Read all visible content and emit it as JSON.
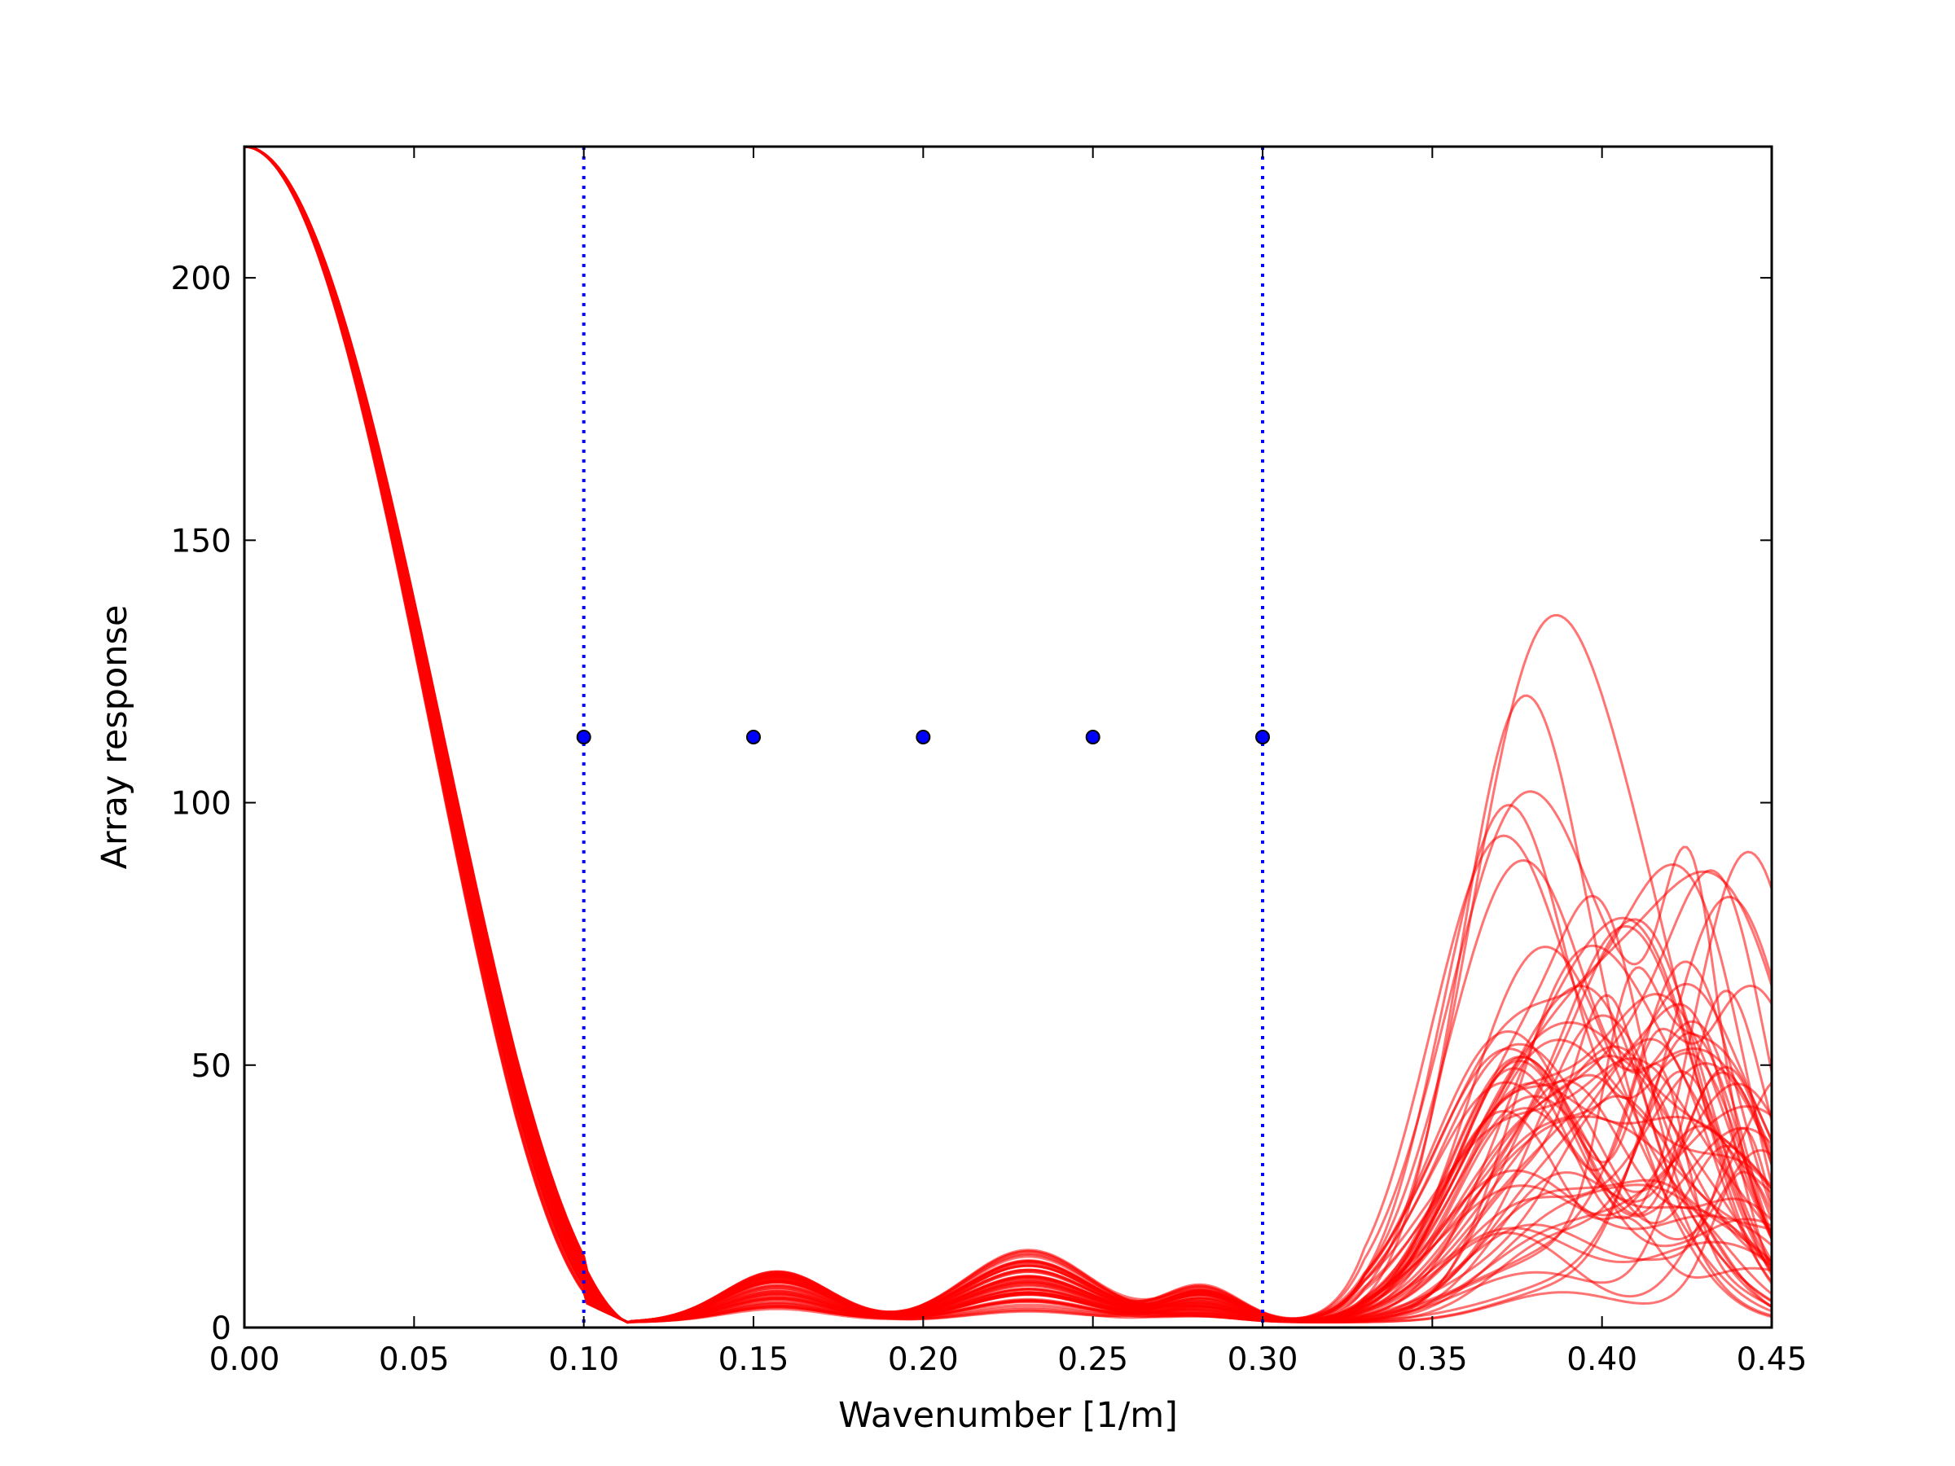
{
  "chart_data": {
    "type": "line",
    "title": "",
    "xlabel": "Wavenumber [1/m]",
    "ylabel": "Array response",
    "xlim": [
      0.0,
      0.45
    ],
    "ylim": [
      0,
      225
    ],
    "x_ticks": [
      0.0,
      0.05,
      0.1,
      0.15,
      0.2,
      0.25,
      0.3,
      0.35,
      0.4,
      0.45
    ],
    "x_tick_labels": [
      "0.00",
      "0.05",
      "0.10",
      "0.15",
      "0.20",
      "0.25",
      "0.30",
      "0.35",
      "0.40",
      "0.45"
    ],
    "y_ticks": [
      0,
      50,
      100,
      150,
      200
    ],
    "y_tick_labels": [
      "0",
      "50",
      "100",
      "150",
      "200"
    ],
    "grid": false,
    "series_color": "#ff0000",
    "response_curves": {
      "count": 60,
      "main_lobe": {
        "peak_x": 0.0,
        "peak_y": 225,
        "null_x": 0.113
      },
      "sidelobe_peaks_in_band": [
        {
          "x": 0.157,
          "max_y": 10
        },
        {
          "x": 0.231,
          "max_y": 14
        },
        {
          "x": 0.28,
          "max_y": 7
        }
      ],
      "grating_lobe_peaks_beyond_band": [
        {
          "x": 0.38,
          "max_y": 127
        },
        {
          "x": 0.435,
          "max_y": 83
        }
      ]
    },
    "band_limits": {
      "x": [
        0.1,
        0.3
      ],
      "color": "#0000ff",
      "style": "dotted"
    },
    "markers": {
      "x": [
        0.1,
        0.15,
        0.2,
        0.25,
        0.3
      ],
      "y": [
        112.5,
        112.5,
        112.5,
        112.5,
        112.5
      ],
      "color": "#0000ff"
    }
  }
}
